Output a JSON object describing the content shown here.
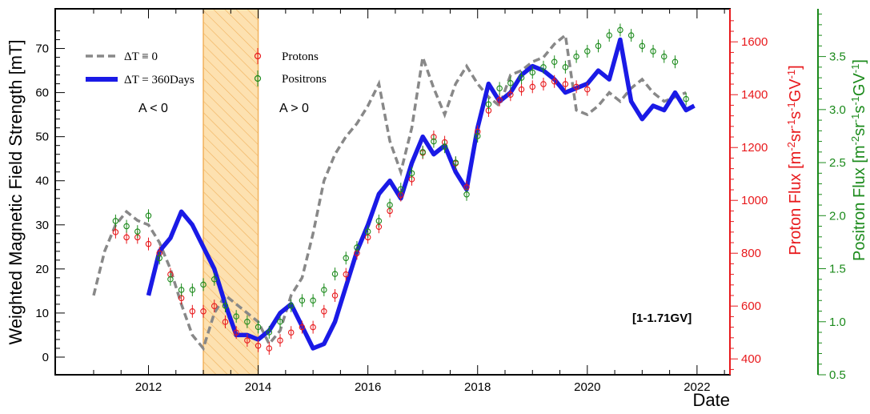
{
  "chart_data": {
    "type": "line",
    "xlabel": "Date",
    "ylabel_left": "Weighted Magnetic Field Strength [mT]",
    "ylabel_proton_parts": [
      "Proton Flux [m",
      "-2",
      "sr",
      "-1",
      "s",
      "-1",
      "GV",
      "-1",
      "]"
    ],
    "ylabel_positron_parts": [
      "Positron Flux [m",
      "-2",
      "sr",
      "-1",
      "s",
      "-1",
      "GV",
      "-1",
      "]"
    ],
    "annotation": "[1-1.71GV]",
    "polarity_before": "A < 0",
    "polarity_after": "A > 0",
    "reversal_band": [
      2013.0,
      2014.0
    ],
    "xlim": [
      2010.3,
      2022.6
    ],
    "ylim_left": [
      -4,
      79
    ],
    "ylim_proton": [
      340,
      1725
    ],
    "ylim_positron": [
      0.5,
      3.95
    ],
    "x_ticks": [
      2012,
      2014,
      2016,
      2018,
      2020,
      2022
    ],
    "y_ticks_left": [
      0,
      10,
      20,
      30,
      40,
      50,
      60,
      70
    ],
    "y_ticks_proton": [
      400,
      600,
      800,
      1000,
      1200,
      1400,
      1600
    ],
    "y_ticks_positron": [
      0.5,
      1.0,
      1.5,
      2.0,
      2.5,
      3.0,
      3.5
    ],
    "y_ticks_positron_labels": [
      "0.5",
      "1.0",
      "1.5",
      "2.0",
      "2.5",
      "3.0",
      "3.5"
    ],
    "legend": {
      "dt0": "ΔT ≡ 0",
      "dt360": "ΔT = 360Days",
      "protons": "Protons",
      "positrons": "Positrons"
    },
    "colors": {
      "dt0": "#888888",
      "dt360": "#1a1ae6",
      "protons": "#e8191c",
      "positrons": "#1b8a1b",
      "band_fill": "#fde1b0",
      "band_hatch": "#f1b15c"
    },
    "series_dt0": {
      "x": [
        2011.0,
        2011.2,
        2011.4,
        2011.6,
        2011.8,
        2012.0,
        2012.2,
        2012.4,
        2012.6,
        2012.8,
        2013.0,
        2013.2,
        2013.4,
        2013.6,
        2013.8,
        2014.0,
        2014.2,
        2014.4,
        2014.6,
        2014.8,
        2015.0,
        2015.2,
        2015.4,
        2015.6,
        2015.8,
        2016.0,
        2016.2,
        2016.4,
        2016.6,
        2016.8,
        2017.0,
        2017.2,
        2017.4,
        2017.6,
        2017.8,
        2018.0,
        2018.2,
        2018.4,
        2018.6,
        2018.8,
        2019.0,
        2019.2,
        2019.4,
        2019.6,
        2019.8,
        2020.0,
        2020.2,
        2020.4,
        2020.6,
        2020.8,
        2021.0,
        2021.2,
        2021.4,
        2021.6,
        2021.8
      ],
      "y": [
        14,
        24,
        30,
        33,
        31,
        30,
        26,
        20,
        12,
        5,
        2,
        10,
        14,
        12,
        10,
        8,
        3,
        6,
        14,
        18,
        28,
        40,
        46,
        50,
        53,
        57,
        62,
        49,
        42,
        52,
        68,
        61,
        55,
        62,
        66,
        62,
        59,
        57,
        64,
        65,
        67,
        68,
        71,
        73,
        56,
        55,
        57,
        60,
        58,
        61,
        63,
        60,
        58,
        59,
        60
      ]
    },
    "series_dt360": {
      "x": [
        2012.0,
        2012.2,
        2012.4,
        2012.6,
        2012.8,
        2013.0,
        2013.2,
        2013.4,
        2013.6,
        2013.8,
        2014.0,
        2014.2,
        2014.4,
        2014.6,
        2014.8,
        2015.0,
        2015.2,
        2015.4,
        2015.6,
        2015.8,
        2016.0,
        2016.2,
        2016.4,
        2016.6,
        2016.8,
        2017.0,
        2017.2,
        2017.4,
        2017.6,
        2017.8,
        2018.0,
        2018.2,
        2018.4,
        2018.6,
        2018.8,
        2019.0,
        2019.2,
        2019.4,
        2019.6,
        2019.8,
        2020.0,
        2020.2,
        2020.4,
        2020.6,
        2020.8,
        2021.0,
        2021.2,
        2021.4,
        2021.6,
        2021.8,
        2021.95
      ],
      "y": [
        14,
        24,
        27,
        33,
        30,
        25,
        20,
        12,
        5,
        5,
        4,
        6,
        10,
        12,
        7,
        2,
        3,
        8,
        16,
        24,
        30,
        37,
        40,
        36,
        44,
        50,
        46,
        48,
        42,
        38,
        52,
        62,
        58,
        60,
        64,
        66,
        65,
        63,
        60,
        61,
        62,
        65,
        63,
        72,
        58,
        54,
        57,
        56,
        60,
        56,
        57
      ]
    },
    "series_protons": {
      "x": [
        2011.4,
        2011.6,
        2011.8,
        2012.0,
        2012.2,
        2012.4,
        2012.6,
        2012.8,
        2013.0,
        2013.2,
        2013.4,
        2013.6,
        2013.8,
        2014.0,
        2014.2,
        2014.4,
        2014.6,
        2014.8,
        2015.0,
        2015.2,
        2015.4,
        2015.6,
        2015.8,
        2016.0,
        2016.2,
        2016.4,
        2016.6,
        2016.8,
        2017.0,
        2017.2,
        2017.4,
        2017.6,
        2017.8,
        2018.0,
        2018.2,
        2018.4,
        2018.6,
        2018.8,
        2019.0,
        2019.2,
        2019.4,
        2019.6,
        2019.8,
        2020.0
      ],
      "y": [
        880,
        860,
        860,
        835,
        800,
        720,
        630,
        580,
        580,
        600,
        540,
        500,
        470,
        450,
        440,
        470,
        500,
        520,
        520,
        580,
        640,
        720,
        800,
        860,
        900,
        960,
        1020,
        1080,
        1180,
        1240,
        1220,
        1140,
        1050,
        1260,
        1340,
        1380,
        1400,
        1420,
        1430,
        1440,
        1450,
        1440,
        1430,
        1420
      ]
    },
    "series_positrons": {
      "x": [
        2011.4,
        2011.6,
        2011.8,
        2012.0,
        2012.2,
        2012.4,
        2012.6,
        2012.8,
        2013.0,
        2013.2,
        2013.4,
        2013.6,
        2013.8,
        2014.0,
        2014.2,
        2014.4,
        2014.6,
        2014.8,
        2015.0,
        2015.2,
        2015.4,
        2015.6,
        2015.8,
        2016.0,
        2016.2,
        2016.4,
        2016.6,
        2016.8,
        2017.0,
        2017.2,
        2017.4,
        2017.6,
        2017.8,
        2018.0,
        2018.2,
        2018.4,
        2018.6,
        2018.8,
        2019.0,
        2019.2,
        2019.4,
        2019.6,
        2019.8,
        2020.0,
        2020.2,
        2020.4,
        2020.6,
        2020.8,
        2021.0,
        2021.2,
        2021.4,
        2021.6,
        2021.8
      ],
      "y": [
        1.95,
        1.9,
        1.85,
        2.0,
        1.6,
        1.4,
        1.3,
        1.3,
        1.35,
        1.4,
        1.15,
        1.05,
        1.0,
        0.95,
        0.9,
        1.0,
        1.15,
        1.2,
        1.2,
        1.3,
        1.45,
        1.6,
        1.7,
        1.85,
        1.95,
        2.1,
        2.25,
        2.4,
        2.6,
        2.7,
        2.65,
        2.5,
        2.2,
        2.75,
        3.05,
        3.2,
        3.25,
        3.3,
        3.35,
        3.4,
        3.45,
        3.4,
        3.5,
        3.55,
        3.6,
        3.7,
        3.75,
        3.7,
        3.6,
        3.55,
        3.5,
        3.45,
        3.1
      ]
    }
  }
}
